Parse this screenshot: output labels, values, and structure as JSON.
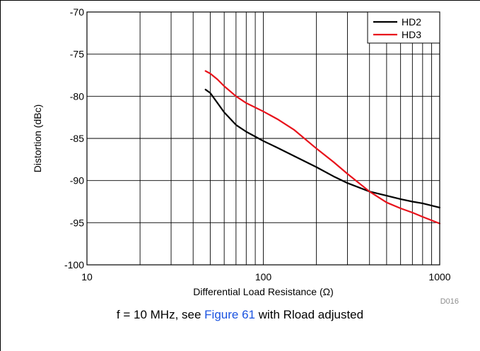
{
  "chart_data": {
    "type": "line",
    "x_scale": "log",
    "xlabel": "Differential Load Resistance (Ω)",
    "ylabel": "Distortion (dBc)",
    "xlim": [
      10,
      1000
    ],
    "ylim": [
      -100,
      -70
    ],
    "x_ticks": [
      "10",
      "100",
      "1000"
    ],
    "y_ticks": [
      "-70",
      "-75",
      "-80",
      "-85",
      "-90",
      "-95",
      "-100"
    ],
    "grid": true,
    "legend_position": "top-right",
    "series": [
      {
        "name": "HD2",
        "color": "#000000",
        "x": [
          47,
          50,
          55,
          60,
          70,
          80,
          100,
          120,
          150,
          200,
          250,
          300,
          400,
          500,
          600,
          700,
          800,
          1000
        ],
        "y": [
          -79.2,
          -79.6,
          -80.8,
          -81.9,
          -83.4,
          -84.2,
          -85.3,
          -86.1,
          -87.1,
          -88.4,
          -89.5,
          -90.3,
          -91.3,
          -91.8,
          -92.2,
          -92.5,
          -92.7,
          -93.2
        ]
      },
      {
        "name": "HD3",
        "color": "#e8121b",
        "x": [
          47,
          50,
          55,
          60,
          70,
          80,
          100,
          120,
          150,
          200,
          250,
          300,
          400,
          500,
          600,
          700,
          800,
          1000
        ],
        "y": [
          -77.0,
          -77.3,
          -78.0,
          -78.8,
          -80.0,
          -80.8,
          -81.8,
          -82.7,
          -84.0,
          -86.2,
          -87.8,
          -89.2,
          -91.3,
          -92.6,
          -93.3,
          -93.8,
          -94.3,
          -95.1
        ]
      }
    ],
    "figure_id": "D016"
  },
  "caption": {
    "prefix": "f = 10 MHz, see ",
    "link": "Figure 61",
    "suffix": " with Rload adjusted"
  },
  "colors": {
    "caption_link": "#1a53e0"
  }
}
